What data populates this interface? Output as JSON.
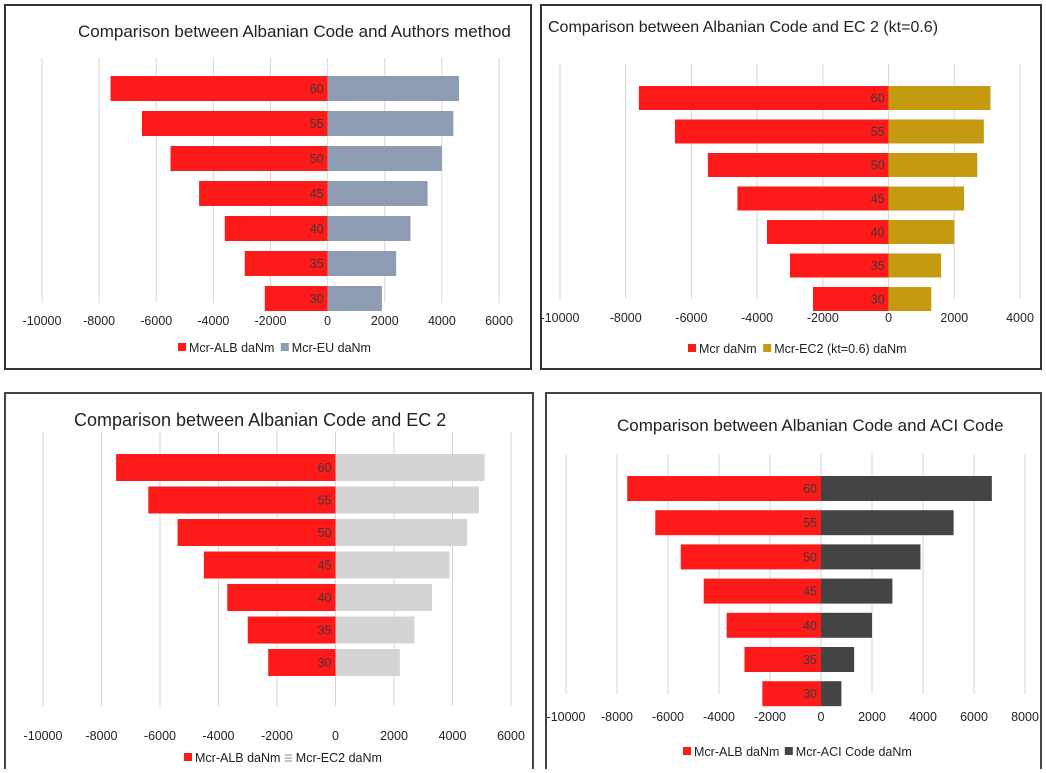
{
  "chart_data": [
    {
      "type": "bar",
      "orientation": "horizontal-butterfly",
      "title": "Comparison between Albanian Code and Authors method",
      "categories": [
        "60",
        "55",
        "50",
        "45",
        "40",
        "35",
        "30"
      ],
      "series": [
        {
          "name": "Mcr-ALB daNm",
          "values": [
            -7600,
            -6500,
            -5500,
            -4500,
            -3600,
            -2900,
            -2200
          ],
          "color": "#ff1a1a"
        },
        {
          "name": "Mcr-EU daNm",
          "values": [
            4600,
            4400,
            4000,
            3500,
            2900,
            2400,
            1900
          ],
          "color": "#8e9cb3"
        }
      ],
      "xlim": [
        -10000,
        6000
      ],
      "xticks": [
        "-10000",
        "-8000",
        "-6000",
        "-4000",
        "-2000",
        "0",
        "2000",
        "4000",
        "6000"
      ],
      "xlabel": "",
      "ylabel": "",
      "grid": "vertical",
      "legend": "bottom"
    },
    {
      "type": "bar",
      "orientation": "horizontal-butterfly",
      "title": "Comparison between Albanian Code and EC 2 (kt=0.6)",
      "categories": [
        "60",
        "55",
        "50",
        "45",
        "40",
        "35",
        "30"
      ],
      "series": [
        {
          "name": "Mcr daNm",
          "values": [
            -7600,
            -6500,
            -5500,
            -4600,
            -3700,
            -3000,
            -2300
          ],
          "color": "#ff1a1a"
        },
        {
          "name": "Mcr-EC2 (kt=0.6) daNm",
          "values": [
            3100,
            2900,
            2700,
            2300,
            2000,
            1600,
            1300
          ],
          "color": "#c49a0f"
        }
      ],
      "xlim": [
        -10000,
        4000
      ],
      "xticks": [
        "-10000",
        "-8000",
        "-6000",
        "-4000",
        "-2000",
        "0",
        "2000",
        "4000"
      ],
      "xlabel": "",
      "ylabel": "",
      "grid": "vertical",
      "legend": "bottom"
    },
    {
      "type": "bar",
      "orientation": "horizontal-butterfly",
      "title": "Comparison between Albanian Code and EC 2",
      "categories": [
        "60",
        "55",
        "50",
        "45",
        "40",
        "35",
        "30"
      ],
      "series": [
        {
          "name": "Mcr-ALB daNm",
          "values": [
            -7500,
            -6400,
            -5400,
            -4500,
            -3700,
            -3000,
            -2300
          ],
          "color": "#ff1a1a"
        },
        {
          "name": "Mcr-EC2 daNm",
          "values": [
            5100,
            4900,
            4500,
            3900,
            3300,
            2700,
            2200
          ],
          "color": "#d4d4d4"
        }
      ],
      "xlim": [
        -10000,
        6000
      ],
      "xticks": [
        "-10000",
        "-8000",
        "-6000",
        "-4000",
        "-2000",
        "0",
        "2000",
        "4000",
        "6000"
      ],
      "xlabel": "",
      "ylabel": "",
      "grid": "vertical",
      "legend": "bottom"
    },
    {
      "type": "bar",
      "orientation": "horizontal-butterfly",
      "title": "Comparison between Albanian Code and ACI Code",
      "categories": [
        "60",
        "55",
        "50",
        "45",
        "40",
        "35",
        "30"
      ],
      "series": [
        {
          "name": "Mcr-ALB daNm",
          "values": [
            -7600,
            -6500,
            -5500,
            -4600,
            -3700,
            -3000,
            -2300
          ],
          "color": "#ff1a1a"
        },
        {
          "name": "Mcr-ACI Code daNm",
          "values": [
            6700,
            5200,
            3900,
            2800,
            2000,
            1300,
            800
          ],
          "color": "#444444"
        }
      ],
      "xlim": [
        -10000,
        8000
      ],
      "xticks": [
        "-10000",
        "-8000",
        "-6000",
        "-4000",
        "-2000",
        "0",
        "2000",
        "4000",
        "6000",
        "8000"
      ],
      "xlabel": "",
      "ylabel": "",
      "grid": "vertical",
      "legend": "bottom"
    }
  ]
}
